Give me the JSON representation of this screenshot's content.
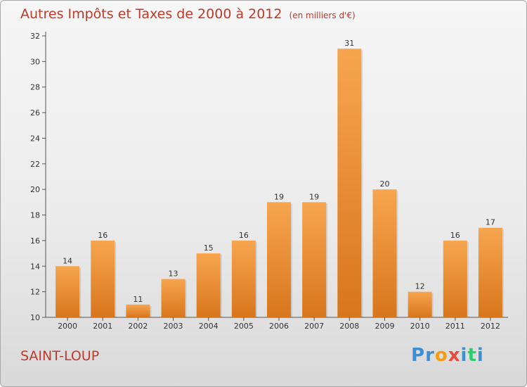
{
  "title": "Autres Impôts et Taxes de 2000 à 2012",
  "subtitle": "(en milliers d'€)",
  "commune": "SAINT-LOUP",
  "logo_letters": [
    {
      "ch": "P",
      "color": "#3a8fd6"
    },
    {
      "ch": "r",
      "color": "#3a8fd6"
    },
    {
      "ch": "o",
      "color": "#f39c12"
    },
    {
      "ch": "x",
      "color": "#e74c3c"
    },
    {
      "ch": "i",
      "color": "#3a8fd6"
    },
    {
      "ch": "t",
      "color": "#2ecc71"
    },
    {
      "ch": "i",
      "color": "#3a8fd6"
    }
  ],
  "colors": {
    "bar_top": "#f7a550",
    "bar_bottom": "#d8761c",
    "text_accent": "#c0392b"
  },
  "chart_data": {
    "type": "bar",
    "categories": [
      "2000",
      "2001",
      "2002",
      "2003",
      "2004",
      "2005",
      "2006",
      "2007",
      "2008",
      "2009",
      "2010",
      "2011",
      "2012"
    ],
    "values": [
      14,
      16,
      11,
      13,
      15,
      16,
      19,
      19,
      31,
      20,
      12,
      16,
      17
    ],
    "ylim": [
      10,
      32
    ],
    "yticks": [
      10,
      12,
      14,
      16,
      18,
      20,
      22,
      24,
      26,
      28,
      30,
      32
    ],
    "grid": false
  }
}
